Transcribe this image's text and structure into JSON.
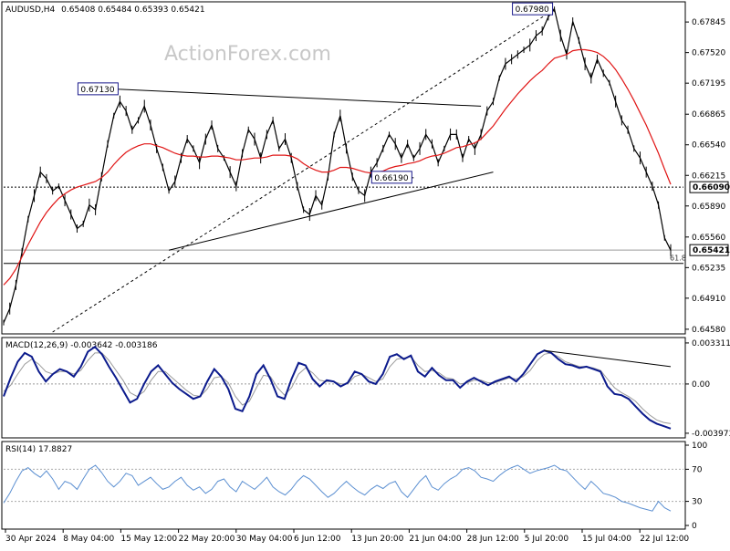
{
  "header": {
    "symbol": "AUDUSD,H4",
    "ohlc": "0.65408 0.65484 0.65393 0.65421"
  },
  "watermark": "ActionForex.com",
  "colors": {
    "price": "#000000",
    "ma": "#e01515",
    "macd": "#0b1a8c",
    "signal": "#9a9a9a",
    "rsi": "#5b8fd1",
    "price_box_fill": "#ffffff",
    "price_box_border": "#1a1a8c"
  },
  "chart_data": [
    {
      "type": "line",
      "panel": "price",
      "title": "AUDUSD,H4",
      "ylim": [
        0.6455,
        0.6804
      ],
      "y_ticks": [
        "0.67845",
        "0.67520",
        "0.67195",
        "0.66865",
        "0.66540",
        "0.66215",
        "0.65890",
        "0.65560",
        "0.65235",
        "0.64910",
        "0.64580"
      ],
      "y_tick_values": [
        0.67845,
        0.6752,
        0.67195,
        0.66865,
        0.6654,
        0.66215,
        0.6589,
        0.6556,
        0.65235,
        0.6491,
        0.6458
      ],
      "x_ticks": [
        "30 Apr 2024",
        "8 May 04:00",
        "15 May 12:00",
        "22 May 20:00",
        "30 May 04:00",
        "6 Jun 12:00",
        "13 Jun 20:00",
        "21 Jun 04:00",
        "28 Jun 12:00",
        "5 Jul 20:00",
        "15 Jul 04:00",
        "22 Jul 12:00"
      ],
      "series": [
        {
          "values": [
            0.6465,
            0.648,
            0.6505,
            0.654,
            0.6575,
            0.66,
            0.6625,
            0.6618,
            0.6605,
            0.661,
            0.6595,
            0.658,
            0.6565,
            0.657,
            0.659,
            0.6585,
            0.662,
            0.6655,
            0.6685,
            0.67,
            0.669,
            0.667,
            0.668,
            0.6695,
            0.6675,
            0.665,
            0.663,
            0.6605,
            0.6615,
            0.664,
            0.666,
            0.665,
            0.6635,
            0.666,
            0.6675,
            0.665,
            0.664,
            0.6625,
            0.661,
            0.6645,
            0.667,
            0.666,
            0.664,
            0.6665,
            0.668,
            0.665,
            0.666,
            0.664,
            0.661,
            0.6585,
            0.658,
            0.66,
            0.659,
            0.662,
            0.6665,
            0.6685,
            0.665,
            0.662,
            0.6605,
            0.66,
            0.6625,
            0.6635,
            0.665,
            0.6665,
            0.6655,
            0.664,
            0.6655,
            0.664,
            0.665,
            0.6665,
            0.6655,
            0.6635,
            0.665,
            0.6665,
            0.6665,
            0.664,
            0.666,
            0.665,
            0.6665,
            0.669,
            0.67,
            0.6725,
            0.674,
            0.6745,
            0.675,
            0.6755,
            0.676,
            0.677,
            0.6775,
            0.679,
            0.6798,
            0.677,
            0.675,
            0.6785,
            0.6765,
            0.674,
            0.6725,
            0.6745,
            0.673,
            0.672,
            0.67,
            0.668,
            0.667,
            0.665,
            0.664,
            0.6625,
            0.661,
            0.659,
            0.6555,
            0.6542
          ],
          "y_tick_highlight": "0.65421"
        },
        {
          "name": "",
          "values": [
            0.6505,
            0.6512,
            0.6522,
            0.6535,
            0.6548,
            0.656,
            0.6572,
            0.6582,
            0.659,
            0.6597,
            0.6602,
            0.6606,
            0.6609,
            0.6611,
            0.6613,
            0.6615,
            0.6619,
            0.6625,
            0.6633,
            0.664,
            0.6646,
            0.665,
            0.6653,
            0.6655,
            0.6655,
            0.6653,
            0.6651,
            0.6648,
            0.6645,
            0.6643,
            0.6642,
            0.6642,
            0.6641,
            0.6641,
            0.6642,
            0.6642,
            0.6641,
            0.664,
            0.6638,
            0.6638,
            0.6639,
            0.664,
            0.664,
            0.6641,
            0.6643,
            0.6643,
            0.6643,
            0.6642,
            0.6639,
            0.6634,
            0.663,
            0.6627,
            0.6625,
            0.6625,
            0.6627,
            0.663,
            0.663,
            0.6629,
            0.6627,
            0.6625,
            0.6624,
            0.6625,
            0.6626,
            0.6629,
            0.6631,
            0.6632,
            0.6634,
            0.6635,
            0.6637,
            0.664,
            0.6642,
            0.6643,
            0.6645,
            0.6648,
            0.6651,
            0.6652,
            0.6654,
            0.6656,
            0.666,
            0.6667,
            0.6674,
            0.6683,
            0.6692,
            0.67,
            0.6708,
            0.6715,
            0.6722,
            0.6728,
            0.6733,
            0.674,
            0.6746,
            0.6748,
            0.675,
            0.6754,
            0.6755,
            0.6755,
            0.6754,
            0.6752,
            0.6748,
            0.6742,
            0.6734,
            0.6724,
            0.6713,
            0.6701,
            0.6688,
            0.6675,
            0.666,
            0.6645,
            0.6628,
            0.6612
          ]
        }
      ],
      "annotations": [
        {
          "label": "0.67980",
          "x_index": 90,
          "value": 0.6798
        },
        {
          "label": "0.67130",
          "x_index": 19,
          "value": 0.6713
        },
        {
          "label": "0.66190",
          "x_index": 67,
          "value": 0.6619
        }
      ],
      "horizontal_levels": [
        {
          "label": "0.66090",
          "value": 0.6609,
          "style": "dotted"
        },
        {
          "label": "0.65421",
          "value": 0.65421,
          "style": "solid-gray"
        },
        {
          "label": "61.8",
          "value": 0.6528,
          "style": "solid-black"
        }
      ],
      "trendlines": [
        {
          "name": "upper-trendline",
          "from": [
            19,
            0.6713
          ],
          "to": [
            78,
            0.6695
          ]
        },
        {
          "name": "lower-trendline",
          "from": [
            27,
            0.6542
          ],
          "to": [
            80,
            0.6625
          ]
        },
        {
          "name": "fib-projection-line",
          "from": [
            8,
            0.6455
          ],
          "to": [
            90,
            0.6798
          ],
          "style": "dotted"
        }
      ]
    },
    {
      "type": "line",
      "panel": "macd",
      "title": "MACD(12,26,9) -0.003642 -0.003186",
      "ylim": [
        -0.0042,
        0.0036
      ],
      "y_ticks": [
        "0.003311",
        "0.00",
        "-0.003973"
      ],
      "y_tick_values": [
        0.003311,
        0,
        -0.003973
      ],
      "series": [
        {
          "name": "MACD",
          "values": [
            -0.001,
            0.0005,
            0.0018,
            0.0025,
            0.0022,
            0.001,
            0.0002,
            0.0008,
            0.0012,
            0.001,
            0.0006,
            0.0014,
            0.0026,
            0.003,
            0.0024,
            0.0014,
            0.0005,
            -0.0005,
            -0.0015,
            -0.0012,
            0.0,
            0.001,
            0.0015,
            0.0008,
            0.0001,
            -0.0004,
            -0.0008,
            -0.0012,
            -0.001,
            0.0002,
            0.0012,
            0.0006,
            -0.0004,
            -0.002,
            -0.0022,
            -0.001,
            0.0008,
            0.0015,
            0.0004,
            -0.001,
            -0.0012,
            0.0004,
            0.0017,
            0.0015,
            0.0004,
            -0.0002,
            0.0003,
            0.0002,
            -0.0002,
            0.0001,
            0.001,
            0.0008,
            0.0002,
            0.0,
            0.0008,
            0.0022,
            0.0024,
            0.002,
            0.0023,
            0.001,
            0.0006,
            0.0013,
            0.0007,
            0.0003,
            0.0003,
            -0.0003,
            0.0002,
            0.0005,
            0.0002,
            -0.0001,
            0.0002,
            0.0004,
            0.0006,
            0.0002,
            0.0008,
            0.0016,
            0.0024,
            0.0027,
            0.0025,
            0.002,
            0.0016,
            0.0015,
            0.0013,
            0.0014,
            0.0012,
            0.001,
            -0.0002,
            -0.0008,
            -0.0009,
            -0.0012,
            -0.0018,
            -0.0024,
            -0.0029,
            -0.0032,
            -0.0034,
            -0.0036
          ]
        },
        {
          "name": "Signal",
          "values": [
            -0.0006,
            -0.0001,
            0.0008,
            0.0016,
            0.002,
            0.0016,
            0.001,
            0.0008,
            0.001,
            0.001,
            0.0008,
            0.0011,
            0.0019,
            0.0025,
            0.0025,
            0.0019,
            0.0011,
            0.0003,
            -0.0007,
            -0.001,
            -0.0006,
            0.0003,
            0.001,
            0.001,
            0.0005,
            0.0,
            -0.0005,
            -0.0009,
            -0.001,
            -0.0004,
            0.0005,
            0.0006,
            0.0001,
            -0.001,
            -0.0017,
            -0.0014,
            -0.0003,
            0.0007,
            0.0006,
            -0.0003,
            -0.0009,
            -0.0003,
            0.0008,
            0.0013,
            0.0009,
            0.0003,
            0.0002,
            0.0002,
            0.0,
            0.0,
            0.0006,
            0.0008,
            0.0005,
            0.0002,
            0.0004,
            0.0014,
            0.002,
            0.0021,
            0.0022,
            0.0015,
            0.001,
            0.0011,
            0.0009,
            0.0005,
            0.0004,
            0.0,
            0.0001,
            0.0003,
            0.0003,
            0.0001,
            0.0001,
            0.0003,
            0.0005,
            0.0004,
            0.0006,
            0.0011,
            0.0019,
            0.0024,
            0.0025,
            0.0022,
            0.0018,
            0.0016,
            0.0014,
            0.0014,
            0.0013,
            0.0011,
            0.0004,
            -0.0003,
            -0.0007,
            -0.001,
            -0.0014,
            -0.002,
            -0.0025,
            -0.0029,
            -0.0031,
            -0.0032
          ]
        }
      ],
      "trendlines": [
        {
          "name": "macd-divergence-line",
          "from": [
            77,
            0.0027
          ],
          "to": [
            95,
            0.0014
          ]
        }
      ]
    },
    {
      "type": "line",
      "panel": "rsi",
      "title": "RSI(14) 17.8827",
      "ylim": [
        0,
        100
      ],
      "y_ticks": [
        "100",
        "70",
        "30",
        "0"
      ],
      "y_tick_values": [
        100,
        70,
        30,
        0
      ],
      "levels": [
        70,
        30
      ],
      "series": [
        {
          "name": "RSI",
          "values": [
            28,
            40,
            55,
            68,
            72,
            65,
            60,
            68,
            58,
            45,
            55,
            52,
            45,
            58,
            70,
            75,
            66,
            55,
            48,
            55,
            65,
            62,
            50,
            55,
            60,
            52,
            45,
            48,
            55,
            60,
            50,
            44,
            48,
            40,
            45,
            55,
            58,
            48,
            42,
            55,
            50,
            45,
            52,
            60,
            48,
            42,
            38,
            45,
            55,
            62,
            58,
            50,
            42,
            35,
            40,
            48,
            55,
            48,
            42,
            38,
            45,
            50,
            46,
            52,
            55,
            42,
            35,
            45,
            55,
            62,
            48,
            44,
            52,
            58,
            62,
            70,
            72,
            68,
            60,
            58,
            55,
            62,
            68,
            72,
            75,
            70,
            65,
            68,
            70,
            72,
            75,
            70,
            68,
            60,
            52,
            45,
            55,
            48,
            40,
            38,
            35,
            30,
            28,
            25,
            22,
            20,
            18,
            30,
            22,
            18
          ]
        }
      ]
    }
  ]
}
